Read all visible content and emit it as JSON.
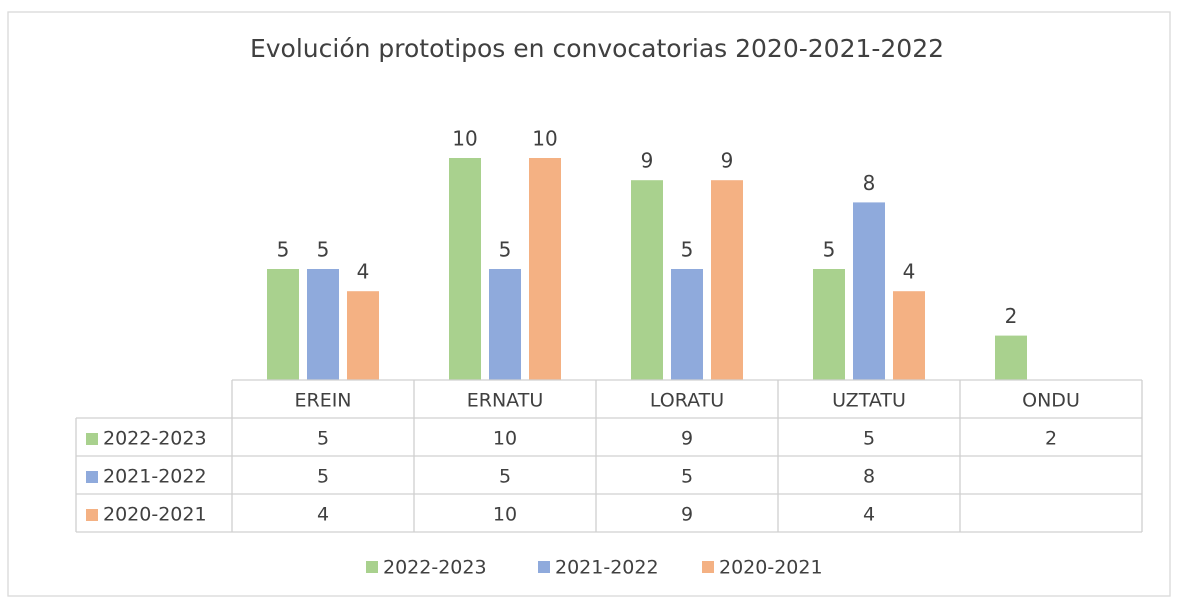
{
  "chart_data": {
    "type": "bar",
    "title": "Evolución prototipos en convocatorias 2020-2021-2022",
    "categories": [
      "EREIN",
      "ERNATU",
      "LORATU",
      "UZTATU",
      "ONDU"
    ],
    "series": [
      {
        "name": "2022-2023",
        "color": "#a9d18e",
        "values": [
          5,
          10,
          9,
          5,
          2
        ]
      },
      {
        "name": "2021-2022",
        "color": "#8faadc",
        "values": [
          5,
          5,
          5,
          8,
          null
        ]
      },
      {
        "name": "2020-2021",
        "color": "#f4b183",
        "values": [
          4,
          10,
          9,
          4,
          null
        ]
      }
    ],
    "data_labels": true,
    "data_table": true,
    "legend": "bottom"
  }
}
